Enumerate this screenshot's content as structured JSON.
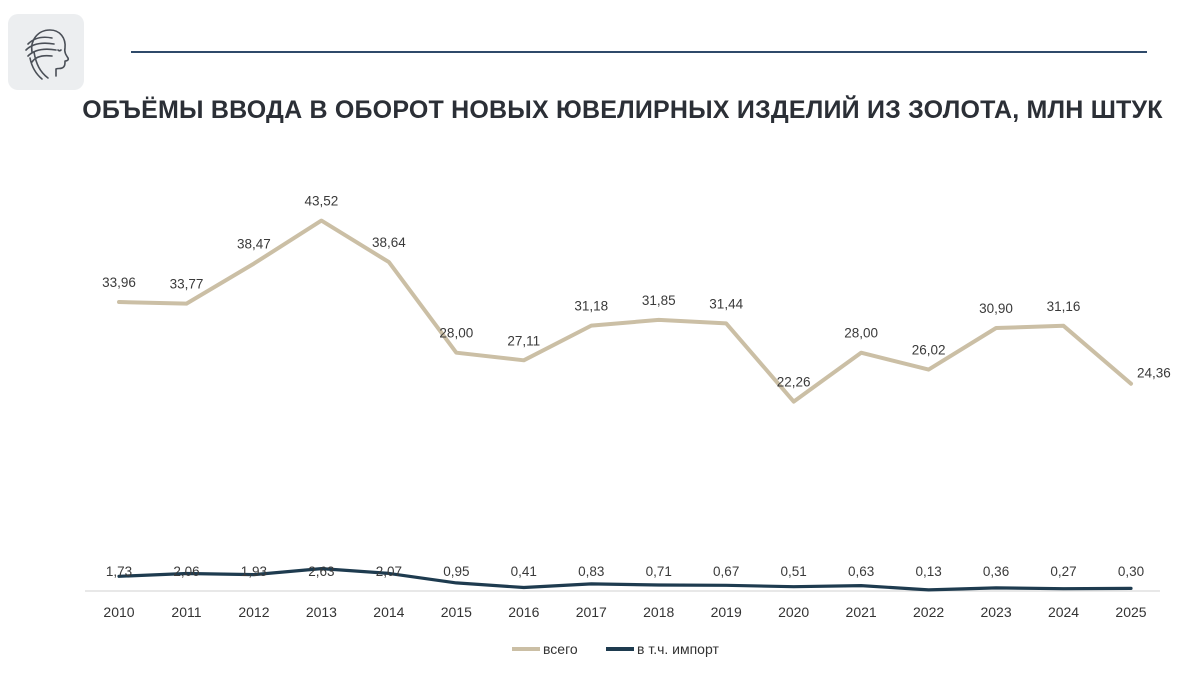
{
  "header": {
    "title": "ОБЪЁМЫ ВВОДА В ОБОРОТ НОВЫХ ЮВЕЛИРНЫХ ИЗДЕЛИЙ ИЗ ЗОЛОТА, МЛН ШТУК",
    "logo": "profile-head-logo-icon"
  },
  "colors": {
    "total": "#cbbfa5",
    "import": "#1e3b4f",
    "rule": "#2f4a6a",
    "axis": "#d0d0d0"
  },
  "chart_data": {
    "type": "line",
    "title": "ОБЪЁМЫ ВВОДА В ОБОРОТ НОВЫХ ЮВЕЛИРНЫХ ИЗДЕЛИЙ ИЗ ЗОЛОТА, МЛН ШТУК",
    "categories": [
      "2010",
      "2011",
      "2012",
      "2013",
      "2014",
      "2015",
      "2016",
      "2017",
      "2018",
      "2019",
      "2020",
      "2021",
      "2022",
      "2023",
      "2024",
      "2025"
    ],
    "series": [
      {
        "name": "всего",
        "values": [
          33.96,
          33.77,
          38.47,
          43.52,
          38.64,
          28.0,
          27.11,
          31.18,
          31.85,
          31.44,
          22.26,
          28.0,
          26.02,
          30.9,
          31.16,
          24.36
        ],
        "labels": [
          "33,96",
          "33,77",
          "38,47",
          "43,52",
          "38,64",
          "28,00",
          "27,11",
          "31,18",
          "31,85",
          "31,44",
          "22,26",
          "28,00",
          "26,02",
          "30,90",
          "31,16",
          "24,36"
        ]
      },
      {
        "name": "в т.ч. импорт",
        "values": [
          1.73,
          2.06,
          1.93,
          2.63,
          2.07,
          0.95,
          0.41,
          0.83,
          0.71,
          0.67,
          0.51,
          0.63,
          0.13,
          0.36,
          0.27,
          0.3
        ],
        "labels": [
          "1,73",
          "2,06",
          "1,93",
          "2,63",
          "2,07",
          "0,95",
          "0,41",
          "0,83",
          "0,71",
          "0,67",
          "0,51",
          "0,63",
          "0,13",
          "0,36",
          "0,27",
          "0,30"
        ]
      }
    ],
    "xlabel": "",
    "ylabel": "",
    "ylim": [
      0,
      47
    ],
    "grid": false,
    "legend": "bottom-center"
  }
}
